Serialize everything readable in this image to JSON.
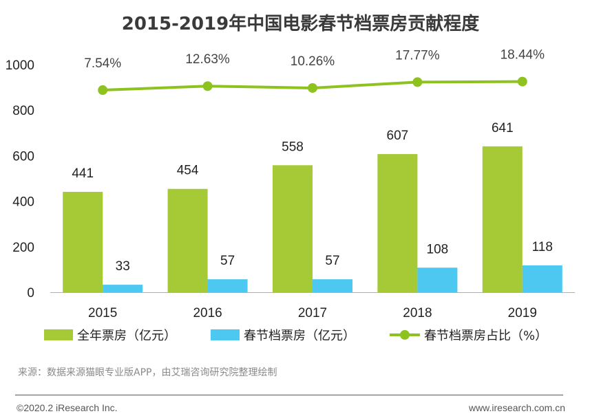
{
  "chart_data": {
    "type": "bar",
    "title": "2015-2019年中国电影春节档票房贡献程度",
    "categories": [
      "2015",
      "2016",
      "2017",
      "2018",
      "2019"
    ],
    "series": [
      {
        "name": "全年票房（亿元）",
        "type": "bar",
        "axis": "left",
        "color": "#a6c936",
        "values": [
          441,
          454,
          558,
          607,
          641
        ]
      },
      {
        "name": "春节档票房（亿元）",
        "type": "bar",
        "axis": "left",
        "color": "#4dc8f0",
        "values": [
          33,
          57,
          57,
          108,
          118
        ]
      },
      {
        "name": "春节档票房占比（%）",
        "type": "line",
        "axis": "right-hidden",
        "color": "#8ec31f",
        "values": [
          7.54,
          12.63,
          10.26,
          17.77,
          18.44
        ],
        "labels": [
          "7.54%",
          "12.63%",
          "10.26%",
          "17.77%",
          "18.44%"
        ]
      }
    ],
    "ylim": [
      0,
      1000
    ],
    "yticks": [
      0,
      200,
      400,
      600,
      800,
      1000
    ],
    "line_ylim": [
      -250,
      40
    ],
    "grid": false,
    "legend_position": "bottom"
  },
  "footer": {
    "source": "来源：数据来源猫眼专业版APP，由艾瑞咨询研究院整理绘制",
    "copyright": "©2020.2 iResearch Inc.",
    "website": "www.iresearch.com.cn"
  }
}
